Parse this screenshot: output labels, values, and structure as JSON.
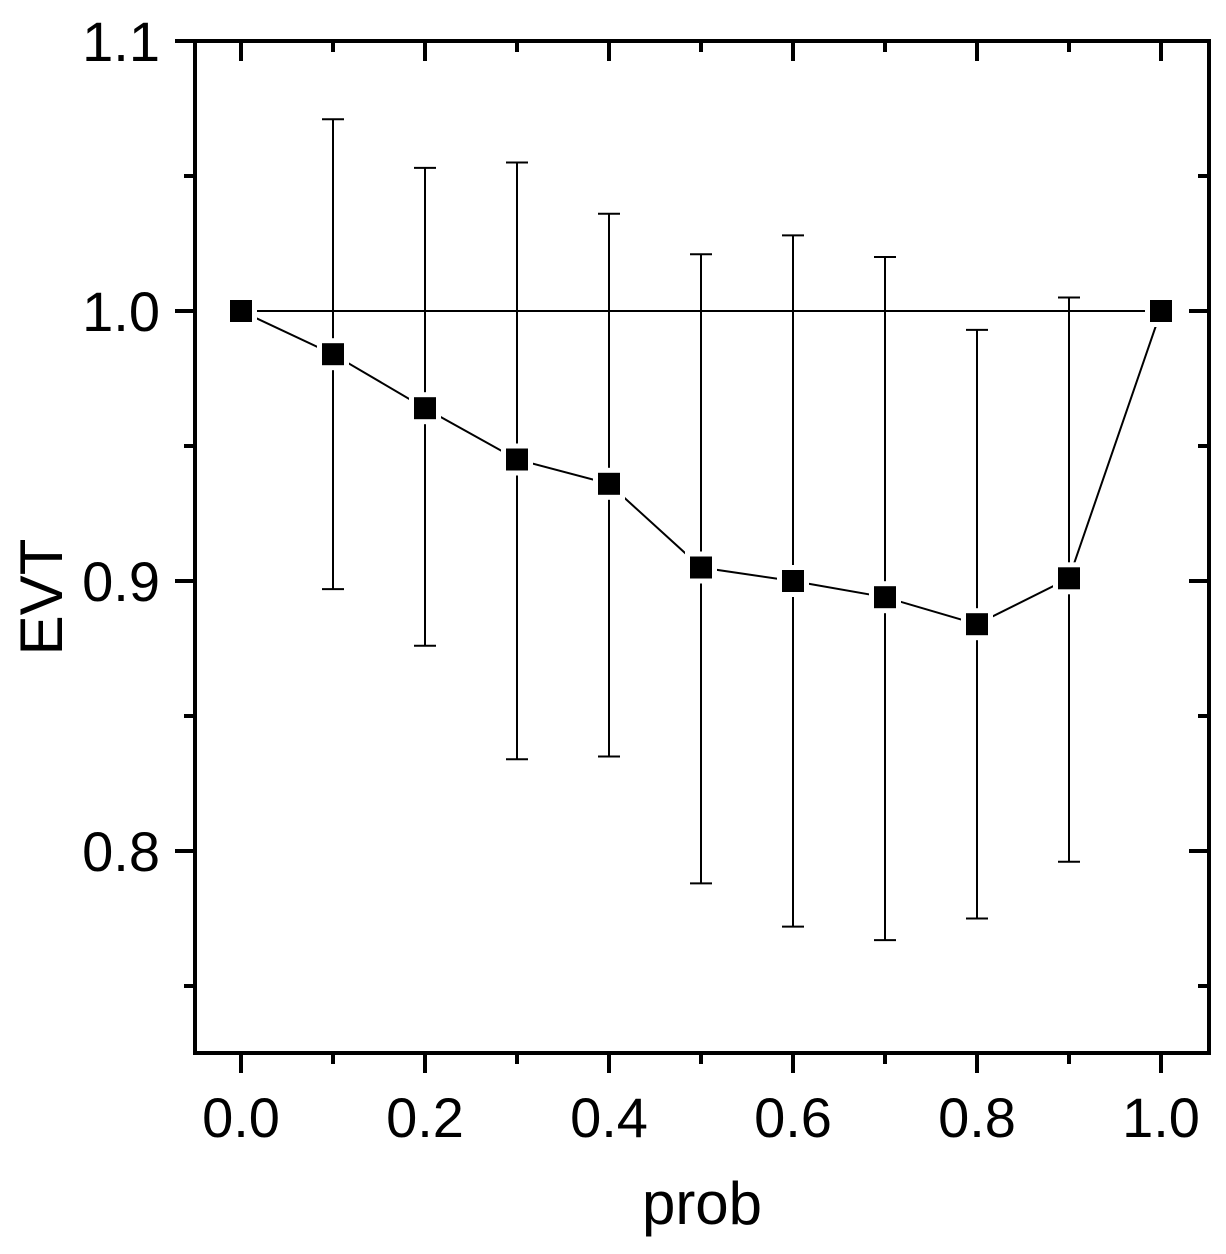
{
  "chart_data": {
    "type": "line",
    "title": "",
    "xlabel": "prob",
    "ylabel": "EVT",
    "xlim": [
      -0.05,
      1.05
    ],
    "ylim": [
      0.725,
      1.1
    ],
    "grid": false,
    "legend": null,
    "x_ticks": [
      0.0,
      0.2,
      0.4,
      0.6,
      0.8,
      1.0
    ],
    "x_tick_labels": [
      "0.0",
      "0.2",
      "0.4",
      "0.6",
      "0.8",
      "1.0"
    ],
    "x_minor_ticks": [
      0.1,
      0.3,
      0.5,
      0.7,
      0.9
    ],
    "y_ticks": [
      0.8,
      0.9,
      1.0,
      1.1
    ],
    "y_tick_labels": [
      "0.8",
      "0.9",
      "1.0",
      "1.1"
    ],
    "y_minor_ticks": [
      0.75,
      0.85,
      0.95,
      1.05
    ],
    "x": [
      0.0,
      0.1,
      0.2,
      0.3,
      0.4,
      0.5,
      0.6,
      0.7,
      0.8,
      0.9,
      1.0
    ],
    "series": [
      {
        "name": "EVT",
        "marker": "filled-square",
        "color": "#000000",
        "values": [
          1.0,
          0.984,
          0.964,
          0.945,
          0.936,
          0.905,
          0.9,
          0.894,
          0.884,
          0.901,
          1.0
        ],
        "error_upper": [
          null,
          1.071,
          1.053,
          1.055,
          1.036,
          1.021,
          1.028,
          1.02,
          0.993,
          1.005,
          null
        ],
        "error_lower": [
          null,
          0.897,
          0.876,
          0.834,
          0.835,
          0.788,
          0.772,
          0.767,
          0.775,
          0.796,
          null
        ]
      }
    ],
    "reference_line": {
      "y": 1.0,
      "x_from": 0.0,
      "x_to": 1.0
    }
  }
}
